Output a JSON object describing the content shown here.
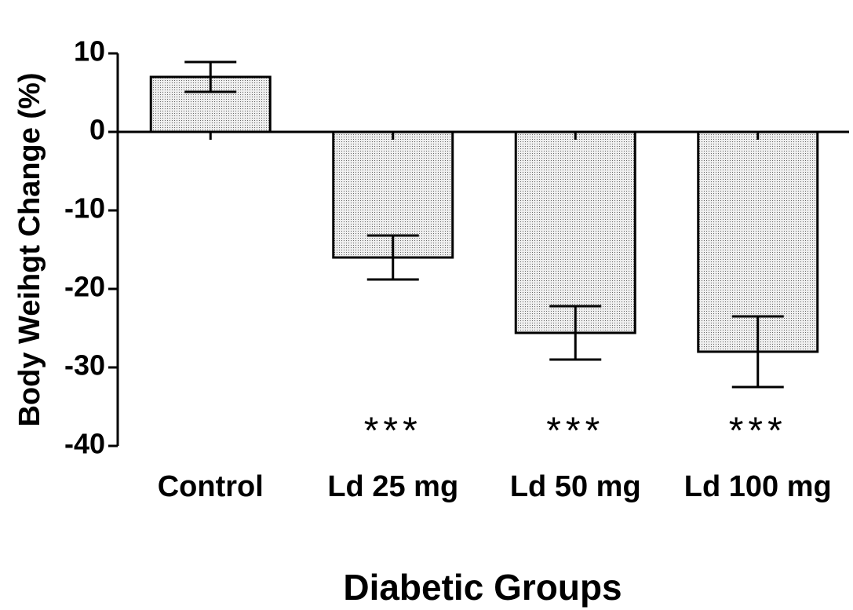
{
  "chart_data": {
    "type": "bar",
    "xlabel": "Diabetic Groups",
    "ylabel": "Body Weihgt Change (%)",
    "categories": [
      "Control",
      "Ld 25 mg",
      "Ld 50 mg",
      "Ld 100 mg"
    ],
    "values": [
      7,
      -16,
      -25.6,
      -28
    ],
    "errors": [
      1.9,
      2.8,
      3.4,
      4.5
    ],
    "annotations": [
      null,
      "***",
      "***",
      "***"
    ],
    "color": "#d4d4d4",
    "ylim": [
      -40,
      10
    ],
    "yticks": [
      -40,
      -30,
      -20,
      -10,
      0,
      10
    ]
  }
}
